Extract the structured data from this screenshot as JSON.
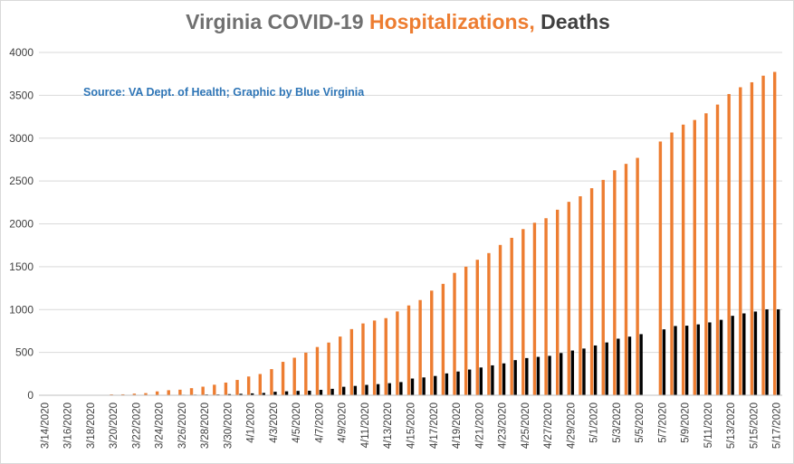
{
  "title": {
    "part1": "Virginia COVID-19 ",
    "part2": "Hospitalizations,",
    "part3": " Deaths"
  },
  "source_note": "Source: VA Dept. of Health; Graphic by Blue Virginia",
  "colors": {
    "hospitalizations": "#ED7D31",
    "deaths": "#000000",
    "grid": "#d9d9d9",
    "axis": "#bfbfbf"
  },
  "chart_data": {
    "type": "bar",
    "title": "Virginia COVID-19 Hospitalizations, Deaths",
    "xlabel": "",
    "ylabel": "",
    "ylim": [
      0,
      4000
    ],
    "yticks": [
      0,
      500,
      1000,
      1500,
      2000,
      2500,
      3000,
      3500,
      4000
    ],
    "grid": true,
    "legend": "none",
    "categories": [
      "3/14/2020",
      "3/15/2020",
      "3/16/2020",
      "3/17/2020",
      "3/18/2020",
      "3/19/2020",
      "3/20/2020",
      "3/21/2020",
      "3/22/2020",
      "3/23/2020",
      "3/24/2020",
      "3/25/2020",
      "3/26/2020",
      "3/27/2020",
      "3/28/2020",
      "3/29/2020",
      "3/30/2020",
      "3/31/2020",
      "4/1/2020",
      "4/2/2020",
      "4/3/2020",
      "4/4/2020",
      "4/5/2020",
      "4/6/2020",
      "4/7/2020",
      "4/8/2020",
      "4/9/2020",
      "4/10/2020",
      "4/11/2020",
      "4/12/2020",
      "4/13/2020",
      "4/14/2020",
      "4/15/2020",
      "4/16/2020",
      "4/17/2020",
      "4/18/2020",
      "4/19/2020",
      "4/20/2020",
      "4/21/2020",
      "4/22/2020",
      "4/23/2020",
      "4/24/2020",
      "4/25/2020",
      "4/26/2020",
      "4/27/2020",
      "4/28/2020",
      "4/29/2020",
      "4/30/2020",
      "5/1/2020",
      "5/2/2020",
      "5/3/2020",
      "5/4/2020",
      "5/5/2020",
      "5/6/2020",
      "5/7/2020",
      "5/8/2020",
      "5/9/2020",
      "5/10/2020",
      "5/11/2020",
      "5/12/2020",
      "5/13/2020",
      "5/14/2020",
      "5/15/2020",
      "5/16/2020",
      "5/17/2020"
    ],
    "tick_labels": [
      "3/14/2020",
      "3/16/2020",
      "3/18/2020",
      "3/20/2020",
      "3/22/2020",
      "3/24/2020",
      "3/26/2020",
      "3/28/2020",
      "3/30/2020",
      "4/1/2020",
      "4/3/2020",
      "4/5/2020",
      "4/7/2020",
      "4/9/2020",
      "4/11/2020",
      "4/13/2020",
      "4/15/2020",
      "4/17/2020",
      "4/19/2020",
      "4/21/2020",
      "4/23/2020",
      "4/25/2020",
      "4/27/2020",
      "4/29/2020",
      "5/1/2020",
      "5/3/2020",
      "5/5/2020",
      "5/7/2020",
      "5/9/2020",
      "5/11/2020",
      "5/13/2020",
      "5/15/2020",
      "5/17/2020"
    ],
    "series": [
      {
        "name": "Hospitalizations",
        "values": [
          1,
          1,
          1,
          1,
          4,
          5,
          10,
          11,
          19,
          25,
          45,
          59,
          65,
          83,
          100,
          123,
          148,
          179,
          219,
          248,
          305,
          390,
          438,
          497,
          563,
          615,
          685,
          772,
          838,
          872,
          900,
          978,
          1048,
          1111,
          1221,
          1300,
          1428,
          1500,
          1581,
          1659,
          1754,
          1837,
          1939,
          2013,
          2066,
          2165,
          2257,
          2322,
          2416,
          2513,
          2625,
          2700,
          2770,
          0,
          2961,
          3066,
          3158,
          3212,
          3290,
          3392,
          3515,
          3594,
          3652,
          3729,
          3773
        ]
      },
      {
        "name": "Deaths",
        "values": [
          0,
          0,
          0,
          0,
          0,
          1,
          2,
          3,
          3,
          4,
          5,
          5,
          6,
          7,
          9,
          9,
          13,
          17,
          22,
          27,
          41,
          46,
          51,
          53,
          63,
          75,
          99,
          109,
          121,
          130,
          141,
          154,
          195,
          208,
          225,
          255,
          277,
          300,
          324,
          349,
          372,
          410,
          434,
          448,
          460,
          493,
          522,
          545,
          581,
          616,
          660,
          684,
          713,
          0,
          769,
          808,
          812,
          827,
          850,
          880,
          927,
          955,
          977,
          1002,
          1002
        ]
      }
    ]
  }
}
